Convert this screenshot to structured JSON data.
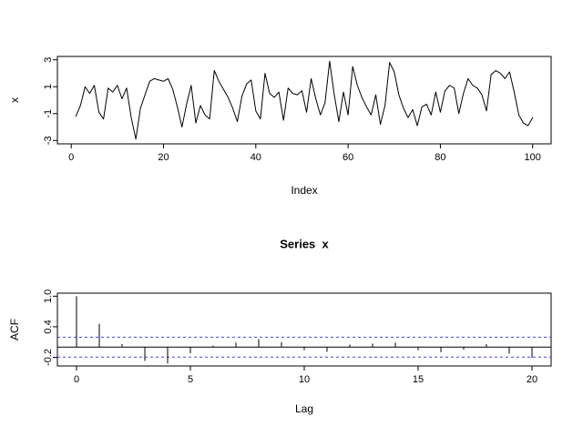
{
  "figure": {
    "background": "#ffffff",
    "axis_color": "#000000"
  },
  "chart_data": [
    {
      "type": "line",
      "title": "",
      "xlabel": "Index",
      "ylabel": "x",
      "x_first": 1,
      "x_last": 100,
      "y": [
        -1.2,
        -0.4,
        1.0,
        0.5,
        1.1,
        -0.9,
        -1.4,
        0.9,
        0.6,
        1.1,
        0.1,
        0.9,
        -1.3,
        -2.9,
        -0.6,
        0.4,
        1.4,
        1.6,
        1.5,
        1.4,
        1.6,
        0.8,
        -0.5,
        -2.0,
        -0.3,
        1.1,
        -1.7,
        -0.4,
        -1.1,
        -1.4,
        2.2,
        1.4,
        0.8,
        0.2,
        -0.6,
        -1.6,
        0.3,
        1.2,
        1.5,
        -0.8,
        -1.4,
        2.0,
        0.5,
        0.2,
        0.6,
        -1.5,
        0.9,
        0.5,
        0.4,
        0.7,
        -0.9,
        1.6,
        0.1,
        -1.1,
        -0.2,
        2.9,
        0.4,
        -1.6,
        0.6,
        -1.1,
        2.5,
        1.1,
        0.2,
        -0.5,
        -1.1,
        0.4,
        -1.8,
        -0.4,
        2.8,
        2.1,
        0.4,
        -0.6,
        -1.3,
        -0.7,
        -1.9,
        -0.5,
        -0.3,
        -1.1,
        0.6,
        -0.9,
        0.7,
        1.1,
        0.9,
        -1.0,
        0.5,
        1.6,
        1.1,
        0.9,
        0.4,
        -0.8,
        1.9,
        2.2,
        2.0,
        1.6,
        2.1,
        0.6,
        -1.1,
        -1.7,
        -1.9,
        -1.3
      ],
      "xlim": [
        0,
        100
      ],
      "ylim": [
        -3,
        3
      ],
      "xticks": [
        "0",
        "20",
        "40",
        "60",
        "80",
        "100"
      ],
      "yticks": [
        "-3",
        "-1",
        "1",
        "3"
      ],
      "line_color": "#000000",
      "grid": false
    },
    {
      "type": "bar",
      "title": "Series  x",
      "xlabel": "Lag",
      "ylabel": "ACF",
      "lags": [
        0,
        1,
        2,
        3,
        4,
        5,
        6,
        7,
        8,
        9,
        10,
        11,
        12,
        13,
        14,
        15,
        16,
        17,
        18,
        19,
        20
      ],
      "acf": [
        1.0,
        0.46,
        0.06,
        -0.27,
        -0.32,
        -0.12,
        0.03,
        0.09,
        0.16,
        0.1,
        -0.06,
        -0.09,
        0.05,
        0.07,
        0.09,
        -0.06,
        -0.1,
        -0.05,
        0.06,
        -0.13,
        -0.21
      ],
      "xlim": [
        0,
        20
      ],
      "ylim": [
        -0.37,
        1.0
      ],
      "xticks": [
        "0",
        "5",
        "10",
        "15",
        "20"
      ],
      "yticks": [
        "-0.2",
        "0.4",
        "1.0"
      ],
      "conf_band": 0.196,
      "conf_color": "#4242ff",
      "bar_color": "#000000",
      "zero_line_color": "#000000",
      "legend": "none",
      "grid": false
    }
  ]
}
